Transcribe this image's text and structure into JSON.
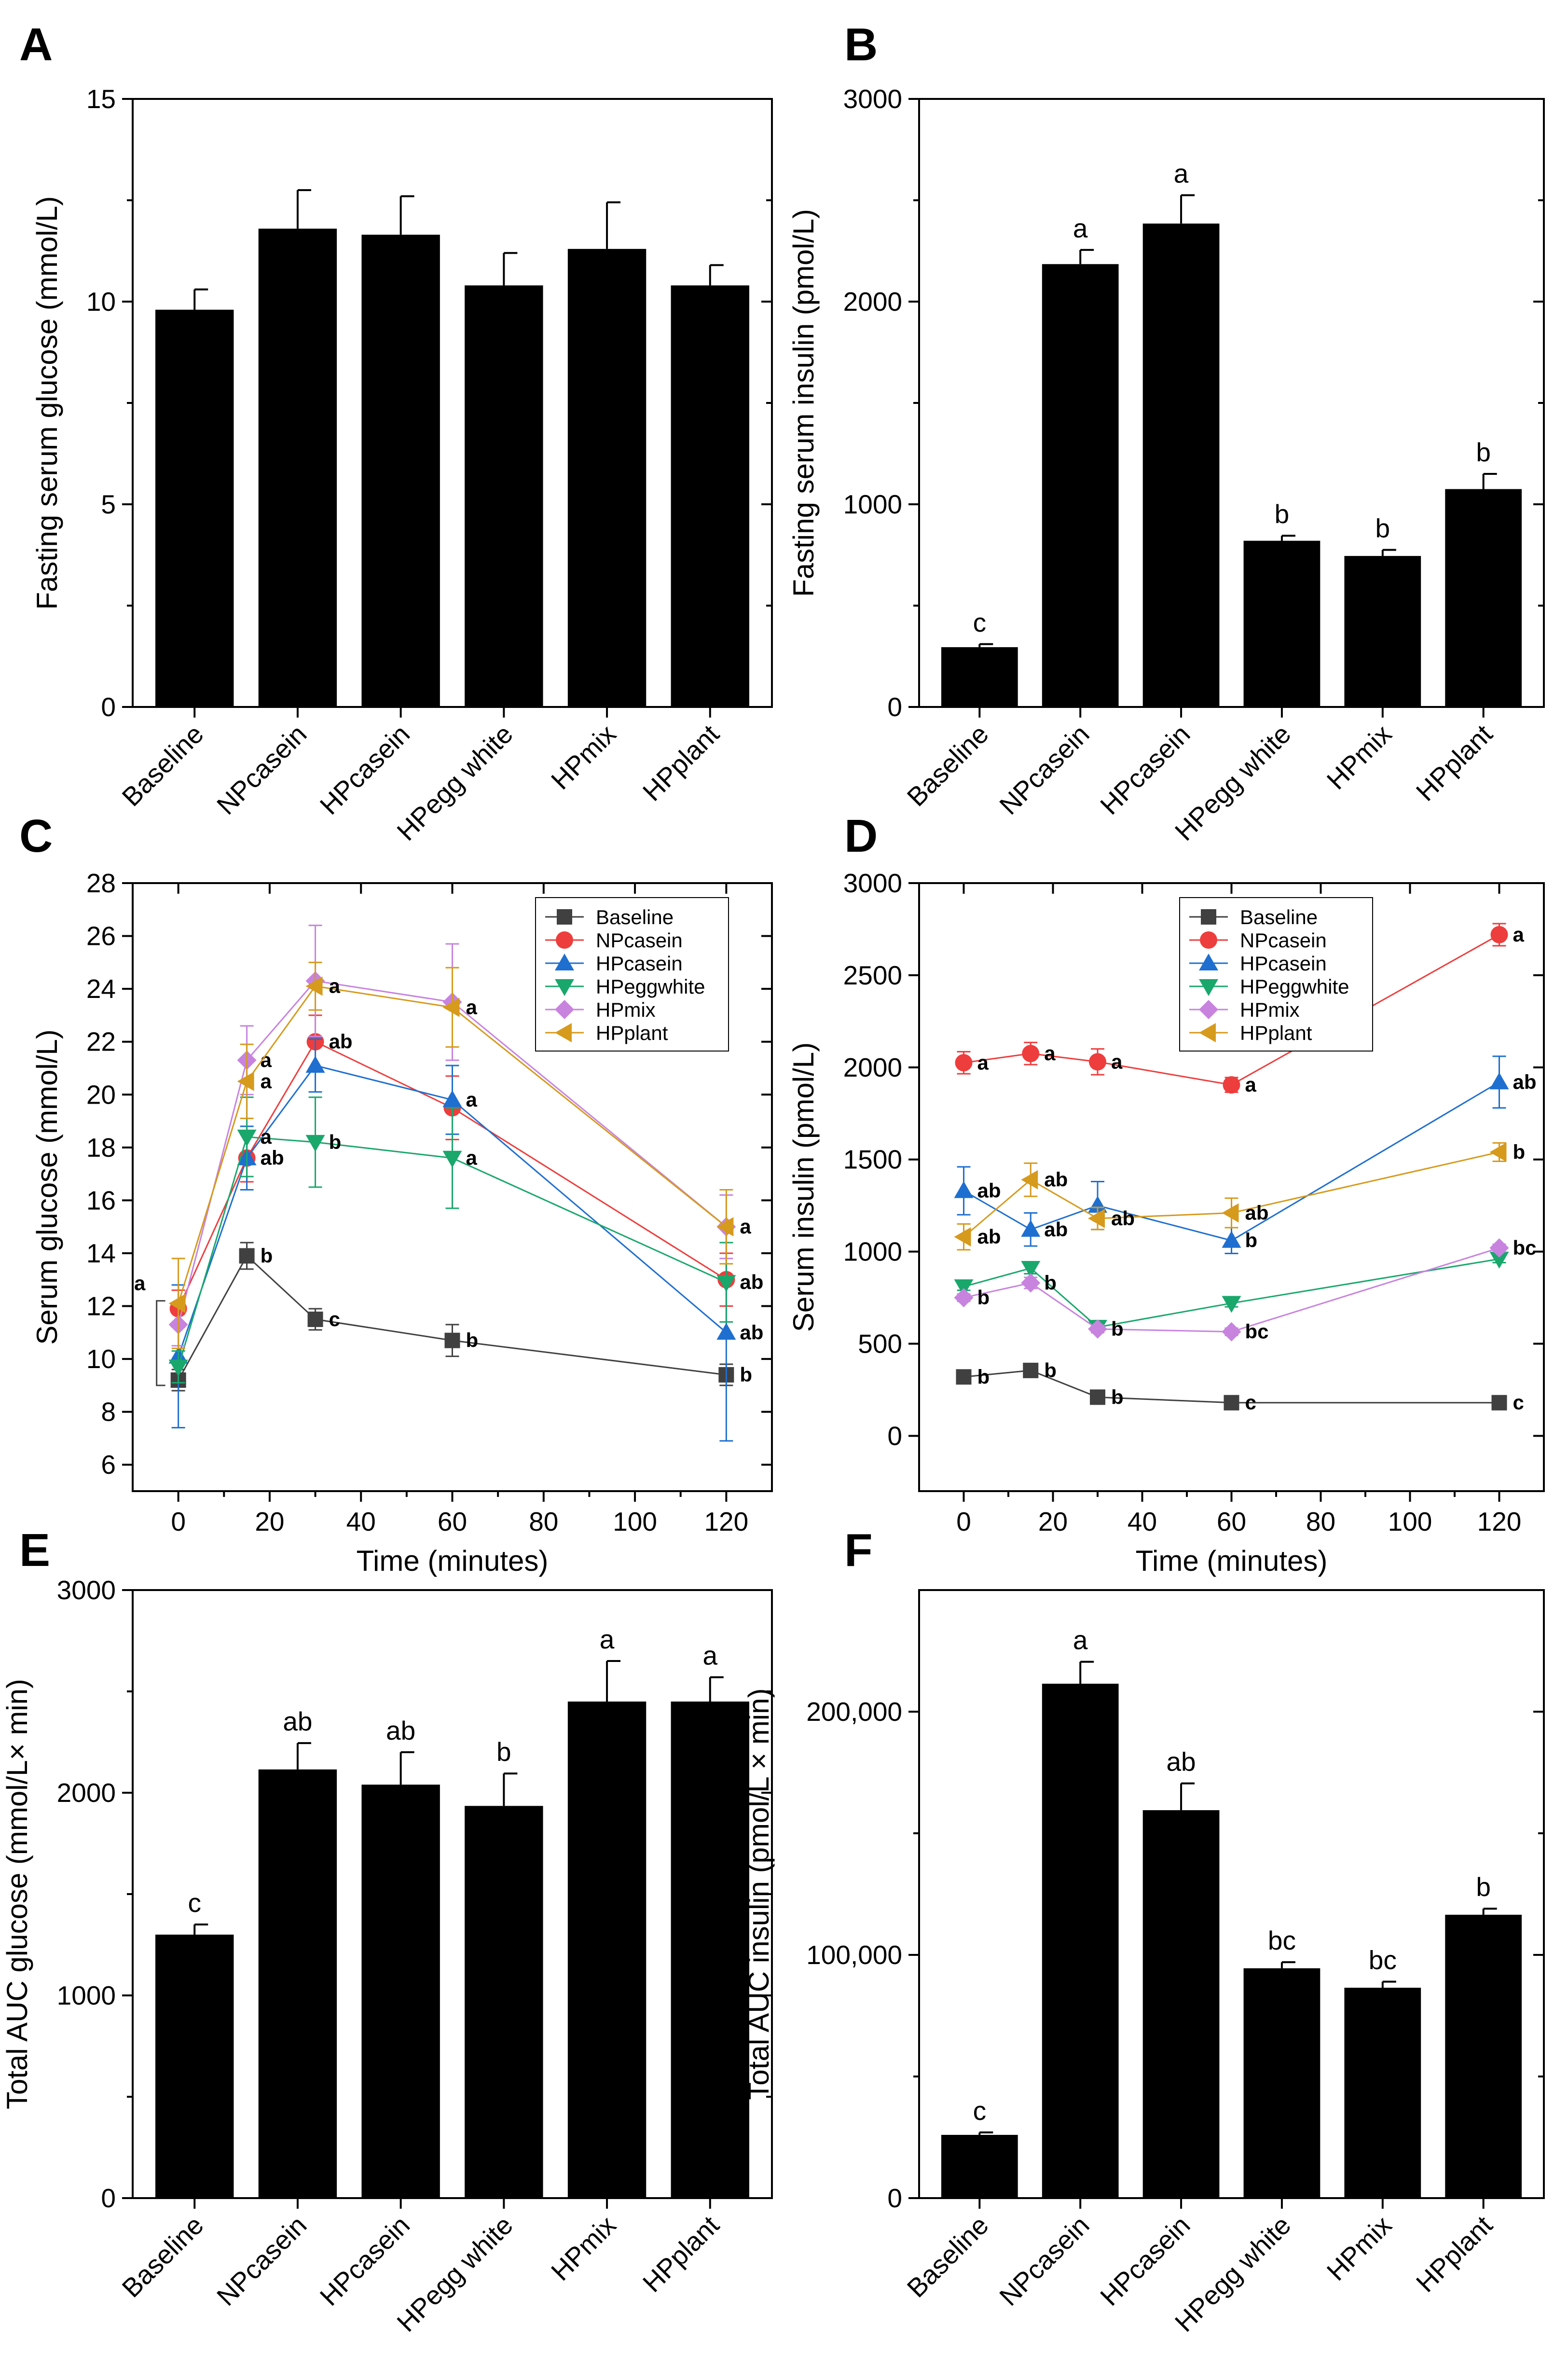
{
  "figure": {
    "colors": {
      "bar": "#000000",
      "Baseline": "#404040",
      "NPcasein": "#ee3d3d",
      "HPcasein": "#1e6fd0",
      "HPeggwhite": "#19a76c",
      "HPmix": "#c883df",
      "HPplant": "#d69a1c"
    }
  },
  "chart_data": [
    {
      "panel": "A",
      "type": "bar",
      "categories": [
        "Baseline",
        "NPcasein",
        "HPcasein",
        "HPegg white",
        "HPmix",
        "HPplant"
      ],
      "values": [
        9.8,
        11.8,
        11.65,
        10.4,
        11.3,
        10.4
      ],
      "errors": [
        0.5,
        0.95,
        0.95,
        0.8,
        1.15,
        0.5
      ],
      "labels": [
        "",
        "",
        "",
        "",
        "",
        ""
      ],
      "ylabel": "Fasting serum glucose (mmol/L)",
      "ylim": [
        0,
        15
      ],
      "yticks": [
        0,
        5,
        10,
        15
      ],
      "ytick_labels": [
        "0",
        "5",
        "10",
        "15"
      ]
    },
    {
      "panel": "B",
      "type": "bar",
      "categories": [
        "Baseline",
        "NPcasein",
        "HPcasein",
        "HPegg white",
        "HPmix",
        "HPplant"
      ],
      "values": [
        295,
        2185,
        2385,
        820,
        745,
        1075
      ],
      "errors": [
        15,
        70,
        140,
        25,
        30,
        75
      ],
      "labels": [
        "c",
        "a",
        "a",
        "b",
        "b",
        "b"
      ],
      "ylabel": "Fasting serum insulin (pmol/L)",
      "ylim": [
        0,
        3000
      ],
      "yticks": [
        0,
        1000,
        2000,
        3000
      ],
      "ytick_labels": [
        "0",
        "1000",
        "2000",
        "3000"
      ]
    },
    {
      "panel": "C",
      "type": "line",
      "x": [
        0,
        15,
        30,
        60,
        120
      ],
      "xlabel": "Time (minutes)",
      "ylabel": "Serum glucose (mmol/L)",
      "xlim": [
        -10,
        130
      ],
      "ylim": [
        5,
        28
      ],
      "xticks": [
        0,
        20,
        40,
        60,
        80,
        100,
        120
      ],
      "yticks": [
        6,
        8,
        10,
        12,
        14,
        16,
        18,
        20,
        22,
        24,
        26,
        28
      ],
      "legend_position": "top-right",
      "series": [
        {
          "name": "Baseline",
          "marker": "square",
          "values": [
            9.2,
            13.9,
            11.5,
            10.7,
            9.4
          ],
          "errors": [
            0.4,
            0.5,
            0.4,
            0.6,
            0.4
          ],
          "labels": [
            "",
            "b",
            "c",
            "b",
            "b"
          ]
        },
        {
          "name": "NPcasein",
          "marker": "circle",
          "values": [
            11.9,
            17.6,
            22.0,
            19.5,
            13.0
          ],
          "errors": [
            0.7,
            0.9,
            1.0,
            1.2,
            1.0
          ],
          "labels": [
            "",
            "",
            "ab",
            "",
            ""
          ]
        },
        {
          "name": "HPcasein",
          "marker": "triangle-up",
          "values": [
            10.1,
            17.6,
            21.1,
            19.8,
            11.0
          ],
          "errors": [
            2.7,
            1.2,
            1.0,
            1.3,
            4.1
          ],
          "labels": [
            "",
            "ab",
            "",
            "a",
            "ab"
          ]
        },
        {
          "name": "HPeggwhite",
          "marker": "triangle-down",
          "values": [
            9.7,
            18.4,
            18.2,
            17.6,
            12.9
          ],
          "errors": [
            0.6,
            1.5,
            1.7,
            1.9,
            1.5
          ],
          "labels": [
            "",
            "a",
            "b",
            "a",
            "ab"
          ]
        },
        {
          "name": "HPmix",
          "marker": "diamond",
          "values": [
            11.3,
            21.3,
            24.3,
            23.5,
            15.0
          ],
          "errors": [
            0.8,
            1.3,
            2.1,
            2.2,
            1.2
          ],
          "labels": [
            "",
            "a",
            "",
            "",
            ""
          ]
        },
        {
          "name": "HPplant",
          "marker": "triangle-left",
          "values": [
            12.1,
            20.5,
            24.1,
            23.3,
            15.0
          ],
          "errors": [
            1.7,
            1.4,
            0.9,
            1.5,
            1.4
          ],
          "labels": [
            "",
            "a",
            "a",
            "a",
            "a"
          ]
        }
      ],
      "bracket_label": "a"
    },
    {
      "panel": "D",
      "type": "line",
      "x": [
        0,
        15,
        30,
        60,
        120
      ],
      "xlabel": "Time (minutes)",
      "ylabel": "Serum insulin (pmol/L)",
      "xlim": [
        -10,
        130
      ],
      "ylim": [
        -300,
        3000
      ],
      "xticks": [
        0,
        20,
        40,
        60,
        80,
        100,
        120
      ],
      "yticks": [
        0,
        500,
        1000,
        1500,
        2000,
        2500,
        3000
      ],
      "legend_position": "top-left",
      "series": [
        {
          "name": "Baseline",
          "marker": "square",
          "values": [
            320,
            355,
            210,
            180,
            180
          ],
          "errors": [
            20,
            20,
            15,
            10,
            10
          ],
          "labels": [
            "b",
            "b",
            "b",
            "c",
            "c"
          ]
        },
        {
          "name": "NPcasein",
          "marker": "circle",
          "values": [
            2025,
            2075,
            2030,
            1905,
            2720
          ],
          "errors": [
            60,
            60,
            70,
            40,
            60
          ],
          "labels": [
            "a",
            "a",
            "a",
            "a",
            "a"
          ]
        },
        {
          "name": "HPcasein",
          "marker": "triangle-up",
          "values": [
            1330,
            1120,
            1250,
            1060,
            1920
          ],
          "errors": [
            130,
            90,
            130,
            70,
            140
          ],
          "labels": [
            "ab",
            "ab",
            "",
            "b",
            "ab"
          ]
        },
        {
          "name": "HPeggwhite",
          "marker": "triangle-down",
          "values": [
            810,
            910,
            590,
            720,
            960
          ],
          "errors": [
            20,
            30,
            20,
            20,
            20
          ],
          "labels": [
            "",
            "",
            "",
            "",
            ""
          ]
        },
        {
          "name": "HPmix",
          "marker": "diamond",
          "values": [
            750,
            830,
            580,
            565,
            1020
          ],
          "errors": [
            20,
            30,
            20,
            20,
            20
          ],
          "labels": [
            "b",
            "b",
            "b",
            "bc",
            "bc"
          ]
        },
        {
          "name": "HPplant",
          "marker": "triangle-left",
          "values": [
            1080,
            1390,
            1180,
            1210,
            1540
          ],
          "errors": [
            70,
            90,
            60,
            80,
            50
          ],
          "labels": [
            "ab",
            "ab",
            "ab",
            "ab",
            "b"
          ]
        }
      ]
    },
    {
      "panel": "E",
      "type": "bar",
      "categories": [
        "Baseline",
        "NPcasein",
        "HPcasein",
        "HPegg white",
        "HPmix",
        "HPplant"
      ],
      "values": [
        1300,
        2115,
        2040,
        1935,
        2450,
        2450
      ],
      "errors": [
        50,
        130,
        160,
        160,
        200,
        120
      ],
      "labels": [
        "c",
        "ab",
        "ab",
        "b",
        "a",
        "a"
      ],
      "ylabel": "Total AUC glucose (mmol/L× min)",
      "ylim": [
        0,
        3000
      ],
      "yticks": [
        0,
        1000,
        2000,
        3000
      ],
      "ytick_labels": [
        "0",
        "1000",
        "2000",
        "3000"
      ]
    },
    {
      "panel": "F",
      "type": "bar",
      "categories": [
        "Baseline",
        "NPcasein",
        "HPcasein",
        "HPegg white",
        "HPmix",
        "HPplant"
      ],
      "values": [
        26000,
        211500,
        159500,
        94500,
        86500,
        116500
      ],
      "errors": [
        1000,
        9000,
        11000,
        2500,
        2500,
        2500
      ],
      "labels": [
        "c",
        "a",
        "ab",
        "bc",
        "bc",
        "b"
      ],
      "ylabel": "Total AUC insulin (pmol/L × min)",
      "ylim": [
        0,
        250000
      ],
      "yticks": [
        0,
        100000,
        200000
      ],
      "ytick_labels": [
        "0",
        "100,000",
        "200,000"
      ]
    }
  ]
}
